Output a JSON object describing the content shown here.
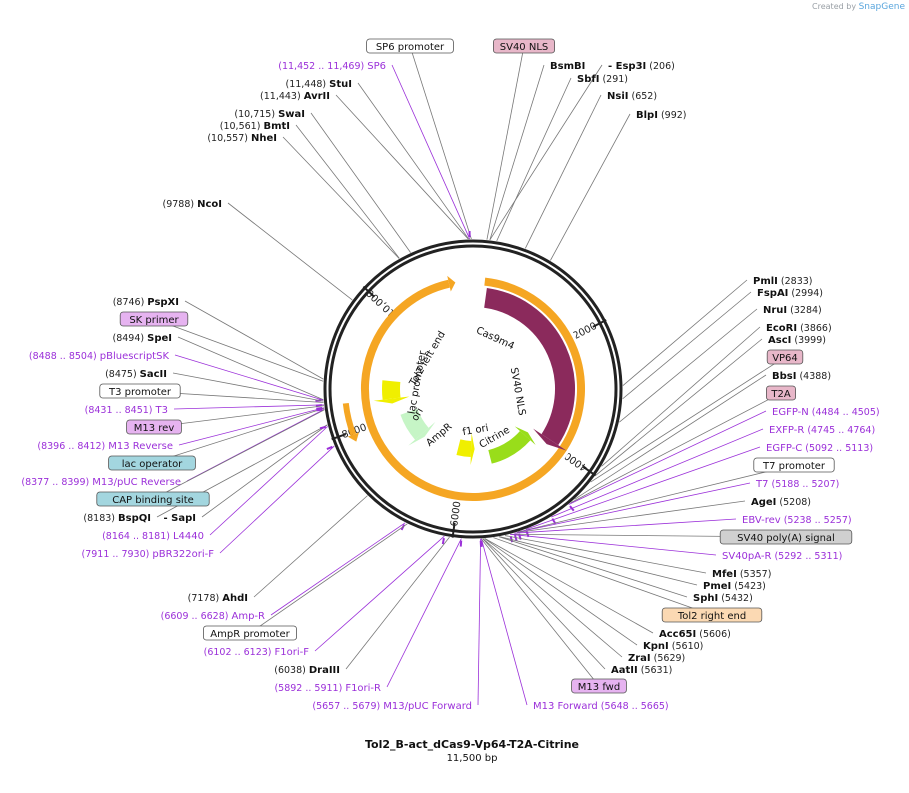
{
  "credit": {
    "prefix": "Created by",
    "brand": "SnapGene"
  },
  "plasmid": {
    "name": "Tol2_B-act_dCas9-Vp64-T2A-Citrine",
    "size_label": "11,500 bp",
    "length": 11500
  },
  "ring_ticks": [
    "2000",
    "4000",
    "6000",
    "8000",
    "10,000"
  ],
  "colors": {
    "primer": "#9b30d9",
    "cds": "#8b2a5c",
    "gene_green": "#99dd1a",
    "misc_yellow": "#f0ef00",
    "amp_green": "#c6f5c6",
    "orange": "#f5a623",
    "box_pink": "#e8b7c9",
    "box_violet": "#e6b3f0",
    "box_teal": "#a3d6df",
    "box_peach": "#fbd9b3",
    "box_grey": "#d0d0d0"
  },
  "labels": [
    {
      "kind": "box",
      "text": "SP6 promoter",
      "fill": "#ffffff"
    },
    {
      "kind": "box",
      "text": "SV40 NLS",
      "fill": "#e8b7c9"
    },
    {
      "kind": "primer",
      "text": "SP6",
      "coord": "(11,452 .. 11,469)"
    },
    {
      "kind": "site",
      "text": "StuI",
      "coord": "(11,448)"
    },
    {
      "kind": "site",
      "text": "AvrII",
      "coord": "(11,443)"
    },
    {
      "kind": "site",
      "text": "SwaI",
      "coord": "(10,715)"
    },
    {
      "kind": "site",
      "text": "BmtI",
      "coord": "(10,561)"
    },
    {
      "kind": "site",
      "text": "NheI",
      "coord": "(10,557)"
    },
    {
      "kind": "site",
      "text": "NcoI",
      "coord": "(9788)"
    },
    {
      "kind": "site",
      "text": "BsmBI",
      "coord": ""
    },
    {
      "kind": "site",
      "text": "- Esp3I",
      "coord": "(206)"
    },
    {
      "kind": "site",
      "text": "SbfI",
      "coord": "(291)"
    },
    {
      "kind": "site",
      "text": "NsiI",
      "coord": "(652)"
    },
    {
      "kind": "site",
      "text": "BlpI",
      "coord": "(992)"
    },
    {
      "kind": "site",
      "text": "PmlI",
      "coord": "(2833)"
    },
    {
      "kind": "site",
      "text": "FspAI",
      "coord": "(2994)"
    },
    {
      "kind": "site",
      "text": "NruI",
      "coord": "(3284)"
    },
    {
      "kind": "site",
      "text": "EcoRI",
      "coord": "(3866)"
    },
    {
      "kind": "site",
      "text": "AscI",
      "coord": "(3999)"
    },
    {
      "kind": "box",
      "text": "VP64",
      "fill": "#e8b7c9"
    },
    {
      "kind": "site",
      "text": "BbsI",
      "coord": "(4388)"
    },
    {
      "kind": "box",
      "text": "T2A",
      "fill": "#e8b7c9"
    },
    {
      "kind": "primer",
      "text": "EGFP-N",
      "coord": "(4484 .. 4505)"
    },
    {
      "kind": "primer",
      "text": "EXFP-R",
      "coord": "(4745 .. 4764)"
    },
    {
      "kind": "primer",
      "text": "EGFP-C",
      "coord": "(5092 .. 5113)"
    },
    {
      "kind": "box",
      "text": "T7 promoter",
      "fill": "#ffffff"
    },
    {
      "kind": "primer",
      "text": "T7",
      "coord": "(5188 .. 5207)"
    },
    {
      "kind": "site",
      "text": "AgeI",
      "coord": "(5208)"
    },
    {
      "kind": "primer",
      "text": "EBV-rev",
      "coord": "(5238 .. 5257)"
    },
    {
      "kind": "box",
      "text": "SV40 poly(A) signal",
      "fill": "#d0d0d0"
    },
    {
      "kind": "primer",
      "text": "SV40pA-R",
      "coord": "(5292 .. 5311)"
    },
    {
      "kind": "site",
      "text": "MfeI",
      "coord": "(5357)"
    },
    {
      "kind": "site",
      "text": "PmeI",
      "coord": "(5423)"
    },
    {
      "kind": "site",
      "text": "SphI",
      "coord": "(5432)"
    },
    {
      "kind": "box",
      "text": "Tol2 right end",
      "fill": "#fbd9b3"
    },
    {
      "kind": "site",
      "text": "Acc65I",
      "coord": "(5606)"
    },
    {
      "kind": "site",
      "text": "KpnI",
      "coord": "(5610)"
    },
    {
      "kind": "site",
      "text": "ZraI",
      "coord": "(5629)"
    },
    {
      "kind": "site",
      "text": "AatII",
      "coord": "(5631)"
    },
    {
      "kind": "box",
      "text": "M13 fwd",
      "fill": "#e6b3f0"
    },
    {
      "kind": "primer",
      "text": "M13 Forward",
      "coord": "(5648 .. 5665)"
    },
    {
      "kind": "site",
      "text": "PspXI",
      "coord": "(8746)"
    },
    {
      "kind": "box",
      "text": "SK primer",
      "fill": "#e6b3f0"
    },
    {
      "kind": "site",
      "text": "SpeI",
      "coord": "(8494)"
    },
    {
      "kind": "primer",
      "text": "pBluescriptSK",
      "coord": "(8488 .. 8504)"
    },
    {
      "kind": "site",
      "text": "SacII",
      "coord": "(8475)"
    },
    {
      "kind": "box",
      "text": "T3 promoter",
      "fill": "#ffffff"
    },
    {
      "kind": "primer",
      "text": "T3",
      "coord": "(8431 .. 8451)"
    },
    {
      "kind": "box",
      "text": "M13 rev",
      "fill": "#e6b3f0"
    },
    {
      "kind": "primer",
      "text": "M13 Reverse",
      "coord": "(8396 .. 8412)"
    },
    {
      "kind": "box",
      "text": "lac operator",
      "fill": "#a3d6df"
    },
    {
      "kind": "primer",
      "text": "M13/pUC Reverse",
      "coord": "(8377 .. 8399)"
    },
    {
      "kind": "box",
      "text": "CAP binding site",
      "fill": "#a3d6df"
    },
    {
      "kind": "site",
      "text": "BspQI",
      "coord": "(8183)"
    },
    {
      "kind": "site",
      "text": "- SapI",
      "coord": ""
    },
    {
      "kind": "primer",
      "text": "L4440",
      "coord": "(8164 .. 8181)"
    },
    {
      "kind": "primer",
      "text": "pBR322ori-F",
      "coord": "(7911 .. 7930)"
    },
    {
      "kind": "site",
      "text": "AhdI",
      "coord": "(7178)"
    },
    {
      "kind": "primer",
      "text": "Amp-R",
      "coord": "(6609 .. 6628)"
    },
    {
      "kind": "box",
      "text": "AmpR promoter",
      "fill": "#ffffff"
    },
    {
      "kind": "primer",
      "text": "F1ori-F",
      "coord": "(6102 .. 6123)"
    },
    {
      "kind": "site",
      "text": "DraIII",
      "coord": "(6038)"
    },
    {
      "kind": "primer",
      "text": "F1ori-R",
      "coord": "(5892 .. 5911)"
    },
    {
      "kind": "primer",
      "text": "M13/pUC Forward",
      "coord": "(5657 .. 5679)"
    }
  ],
  "features": [
    {
      "text": "Cas9m4"
    },
    {
      "text": "SV40 NLS"
    },
    {
      "text": "Citrine"
    },
    {
      "text": "f1 ori"
    },
    {
      "text": "AmpR"
    },
    {
      "text": "ori"
    },
    {
      "text": "lac promoter"
    },
    {
      "text": "Tol2 left end"
    }
  ]
}
